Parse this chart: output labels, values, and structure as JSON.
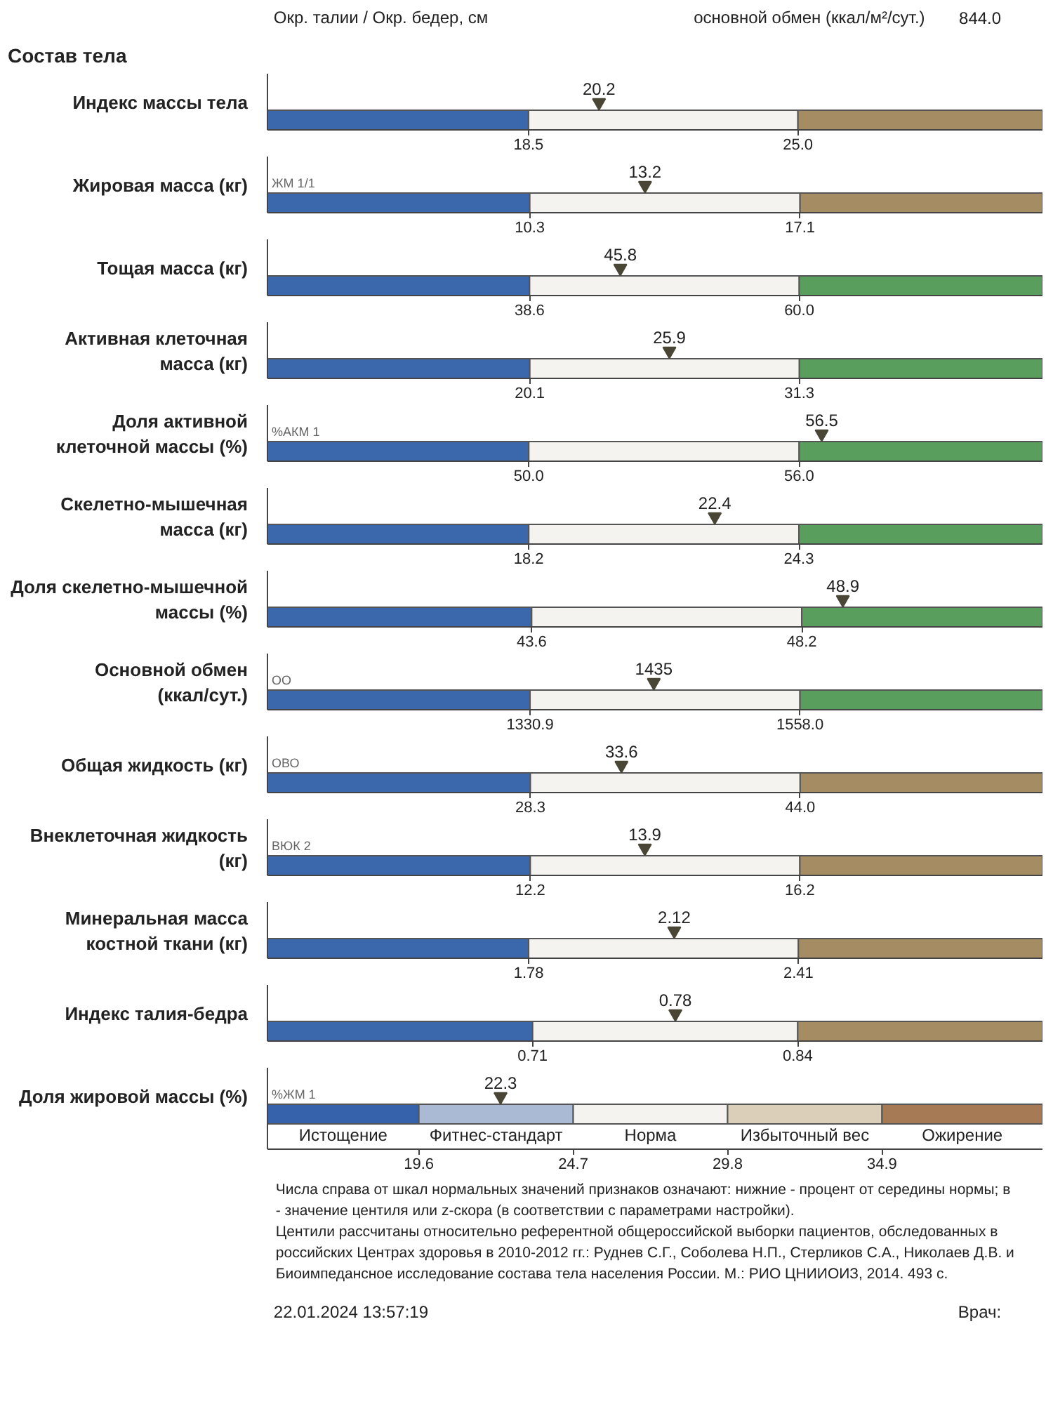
{
  "chart_data": [
    {
      "type": "other",
      "annotations": [
        "Окр. талии / Окр. бедер, см",
        "основной обмен (ккал/м²/сут.)",
        "844.0"
      ]
    },
    {
      "type": "scatter",
      "orientation": "horizontal",
      "title": "Состав тела",
      "categories": [
        "Индекс массы тела"
      ],
      "values": [
        20.2
      ],
      "xlim": [
        12.2,
        30.9
      ],
      "xticks": [
        18.5,
        {
          "value": 25.0,
          "label": "25.0"
        }
      ],
      "bands": [
        {
          "axis": "x",
          "from": 12.2,
          "to": 18.5,
          "color": "#3b67ad"
        },
        {
          "axis": "x",
          "from": 18.5,
          "to": 25.0,
          "color": "#f4f3ef"
        },
        {
          "axis": "x",
          "from": 25.0,
          "to": 30.9,
          "color": "#a58c63"
        }
      ],
      "marker": "triangle",
      "data_labels": true
    },
    {
      "type": "scatter",
      "orientation": "horizontal",
      "categories": [
        "Жировая масса (кг)"
      ],
      "values": [
        13.2
      ],
      "xlim": [
        3.7,
        23.2
      ],
      "xticks": [
        10.3,
        17.1
      ],
      "bands": [
        {
          "axis": "x",
          "from": 3.7,
          "to": 10.3,
          "color": "#3b67ad"
        },
        {
          "axis": "x",
          "from": 10.3,
          "to": 17.1,
          "color": "#f4f3ef"
        },
        {
          "axis": "x",
          "from": 17.1,
          "to": 23.2,
          "color": "#a58c63"
        }
      ],
      "marker": "triangle",
      "data_labels": true,
      "annotations": [
        "ЖМ 1/1"
      ]
    },
    {
      "type": "scatter",
      "orientation": "horizontal",
      "categories": [
        "Тощая масса (кг)"
      ],
      "values": [
        45.8
      ],
      "xlim": [
        17.8,
        79.3
      ],
      "xticks": [
        38.6,
        {
          "value": 60.0,
          "label": "60.0"
        }
      ],
      "bands": [
        {
          "axis": "x",
          "from": 17.8,
          "to": 38.6,
          "color": "#3b67ad"
        },
        {
          "axis": "x",
          "from": 38.6,
          "to": 60.0,
          "color": "#f4f3ef"
        },
        {
          "axis": "x",
          "from": 60.0,
          "to": 79.3,
          "color": "#5a9e5e"
        }
      ],
      "marker": "triangle",
      "data_labels": true
    },
    {
      "type": "scatter",
      "orientation": "horizontal",
      "categories": [
        "Активная клеточная масса (кг)"
      ],
      "values": [
        25.9
      ],
      "xlim": [
        9.2,
        41.4
      ],
      "xticks": [
        20.1,
        31.3
      ],
      "bands": [
        {
          "axis": "x",
          "from": 9.2,
          "to": 20.1,
          "color": "#3b67ad"
        },
        {
          "axis": "x",
          "from": 20.1,
          "to": 31.3,
          "color": "#f4f3ef"
        },
        {
          "axis": "x",
          "from": 31.3,
          "to": 41.4,
          "color": "#5a9e5e"
        }
      ],
      "marker": "triangle",
      "data_labels": true
    },
    {
      "type": "scatter",
      "orientation": "horizontal",
      "categories": [
        "Доля активной клеточной массы (%)"
      ],
      "values": [
        56.5
      ],
      "xlim": [
        44.2,
        61.4
      ],
      "xticks": [
        {
          "value": 50.0,
          "label": "50.0"
        },
        {
          "value": 56.0,
          "label": "56.0"
        }
      ],
      "bands": [
        {
          "axis": "x",
          "from": 44.2,
          "to": 50.0,
          "color": "#3b67ad"
        },
        {
          "axis": "x",
          "from": 50.0,
          "to": 56.0,
          "color": "#f4f3ef"
        },
        {
          "axis": "x",
          "from": 56.0,
          "to": 61.4,
          "color": "#5a9e5e"
        }
      ],
      "marker": "triangle",
      "data_labels": true,
      "annotations": [
        "%АКМ 1"
      ]
    },
    {
      "type": "scatter",
      "orientation": "horizontal",
      "categories": [
        "Скелетно-мышечная масса (кг)"
      ],
      "values": [
        22.4
      ],
      "xlim": [
        12.3,
        29.8
      ],
      "xticks": [
        18.2,
        24.3
      ],
      "bands": [
        {
          "axis": "x",
          "from": 12.3,
          "to": 18.2,
          "color": "#3b67ad"
        },
        {
          "axis": "x",
          "from": 18.2,
          "to": 24.3,
          "color": "#f4f3ef"
        },
        {
          "axis": "x",
          "from": 24.3,
          "to": 29.8,
          "color": "#5a9e5e"
        }
      ],
      "marker": "triangle",
      "data_labels": true
    },
    {
      "type": "scatter",
      "orientation": "horizontal",
      "categories": [
        "Доля скелетно-мышечной массы (%)"
      ],
      "values": [
        48.9
      ],
      "xlim": [
        39.1,
        52.3
      ],
      "xticks": [
        43.6,
        48.2
      ],
      "bands": [
        {
          "axis": "x",
          "from": 39.1,
          "to": 43.6,
          "color": "#3b67ad"
        },
        {
          "axis": "x",
          "from": 43.6,
          "to": 48.2,
          "color": "#f4f3ef"
        },
        {
          "axis": "x",
          "from": 48.2,
          "to": 52.3,
          "color": "#5a9e5e"
        }
      ],
      "marker": "triangle",
      "data_labels": true
    },
    {
      "type": "scatter",
      "orientation": "horizontal",
      "categories": [
        "Основной обмен (ккал/сут.)"
      ],
      "values": [
        1435
      ],
      "xlim": [
        1110,
        1762
      ],
      "xticks": [
        1330.9,
        {
          "value": 1558.0,
          "label": "1558.0"
        }
      ],
      "bands": [
        {
          "axis": "x",
          "from": 1110,
          "to": 1330.9,
          "color": "#3b67ad"
        },
        {
          "axis": "x",
          "from": 1330.9,
          "to": 1558.0,
          "color": "#f4f3ef"
        },
        {
          "axis": "x",
          "from": 1558.0,
          "to": 1762,
          "color": "#5a9e5e"
        }
      ],
      "marker": "triangle",
      "data_labels": true,
      "annotations": [
        "ОО"
      ]
    },
    {
      "type": "scatter",
      "orientation": "horizontal",
      "categories": [
        "Общая жидкость (кг)"
      ],
      "values": [
        33.6
      ],
      "xlim": [
        13,
        58.1
      ],
      "xticks": [
        28.3,
        {
          "value": 44.0,
          "label": "44.0"
        }
      ],
      "bands": [
        {
          "axis": "x",
          "from": 13,
          "to": 28.3,
          "color": "#3b67ad"
        },
        {
          "axis": "x",
          "from": 28.3,
          "to": 44.0,
          "color": "#f4f3ef"
        },
        {
          "axis": "x",
          "from": 44.0,
          "to": 58.1,
          "color": "#a58c63"
        }
      ],
      "marker": "triangle",
      "data_labels": true,
      "annotations": [
        "ОВО"
      ]
    },
    {
      "type": "scatter",
      "orientation": "horizontal",
      "categories": [
        "Внеклеточная жидкость (кг)"
      ],
      "values": [
        13.9
      ],
      "xlim": [
        8.3,
        19.8
      ],
      "xticks": [
        12.2,
        16.2
      ],
      "bands": [
        {
          "axis": "x",
          "from": 8.3,
          "to": 12.2,
          "color": "#3b67ad"
        },
        {
          "axis": "x",
          "from": 12.2,
          "to": 16.2,
          "color": "#f4f3ef"
        },
        {
          "axis": "x",
          "from": 16.2,
          "to": 19.8,
          "color": "#a58c63"
        }
      ],
      "marker": "triangle",
      "data_labels": true,
      "annotations": [
        "ВЮК 2"
      ]
    },
    {
      "type": "scatter",
      "orientation": "horizontal",
      "categories": [
        "Минеральная масса костной ткани (кг)"
      ],
      "values": [
        2.12
      ],
      "xlim": [
        1.17,
        2.98
      ],
      "xticks": [
        1.78,
        2.41
      ],
      "bands": [
        {
          "axis": "x",
          "from": 1.17,
          "to": 1.78,
          "color": "#3b67ad"
        },
        {
          "axis": "x",
          "from": 1.78,
          "to": 2.41,
          "color": "#f4f3ef"
        },
        {
          "axis": "x",
          "from": 2.41,
          "to": 2.98,
          "color": "#a58c63"
        }
      ],
      "marker": "triangle",
      "data_labels": true
    },
    {
      "type": "scatter",
      "orientation": "horizontal",
      "categories": [
        "Индекс талия-бедра"
      ],
      "values": [
        0.78
      ],
      "xlim": [
        0.58,
        0.96
      ],
      "xticks": [
        0.71,
        0.84
      ],
      "bands": [
        {
          "axis": "x",
          "from": 0.58,
          "to": 0.71,
          "color": "#3b67ad"
        },
        {
          "axis": "x",
          "from": 0.71,
          "to": 0.84,
          "color": "#f4f3ef"
        },
        {
          "axis": "x",
          "from": 0.84,
          "to": 0.96,
          "color": "#a58c63"
        }
      ],
      "marker": "triangle",
      "data_labels": true
    },
    {
      "type": "scatter",
      "orientation": "horizontal",
      "categories": [
        "Доля жировой массы (%)"
      ],
      "values": [
        22.3
      ],
      "xlim": [
        14.6,
        40.2
      ],
      "xticks": [
        19.6,
        24.7,
        29.8,
        34.9
      ],
      "bands": [
        {
          "axis": "x",
          "from": 14.6,
          "to": 19.6,
          "color": "#3562aa",
          "label": "Истощение"
        },
        {
          "axis": "x",
          "from": 19.6,
          "to": 24.7,
          "color": "#aabad5",
          "label": "Фитнес-стандарт"
        },
        {
          "axis": "x",
          "from": 24.7,
          "to": 29.8,
          "color": "#f4f3ef",
          "label": "Норма"
        },
        {
          "axis": "x",
          "from": 29.8,
          "to": 34.9,
          "color": "#dccfb9",
          "label": "Избыточный вес"
        },
        {
          "axis": "x",
          "from": 34.9,
          "to": 40.2,
          "color": "#a57a55",
          "label": "Ожирение"
        }
      ],
      "marker": "triangle",
      "data_labels": true,
      "annotations": [
        "%ЖМ 1"
      ]
    },
    {
      "type": "other",
      "annotations": [
        "Числа справа от шкал нормальных значений признаков означают: нижние - процент от середины нормы; в",
        "- значение центиля или z-скора (в соответствии с параметрами настройки).",
        "Центили рассчитаны относительно референтной общероссийской выборки пациентов, обследованных в",
        "российских Центрах здоровья в 2010-2012 гг.: Руднев С.Г., Соболева Н.П., Стерликов С.А., Николаев Д.В. и",
        "Биоимпедансное исследование состава тела населения России. М.: РИО ЦНИИОИЗ, 2014. 493 с."
      ]
    },
    {
      "type": "other",
      "annotations": [
        "22.01.2024 13:57:19",
        "Врач:"
      ]
    }
  ]
}
